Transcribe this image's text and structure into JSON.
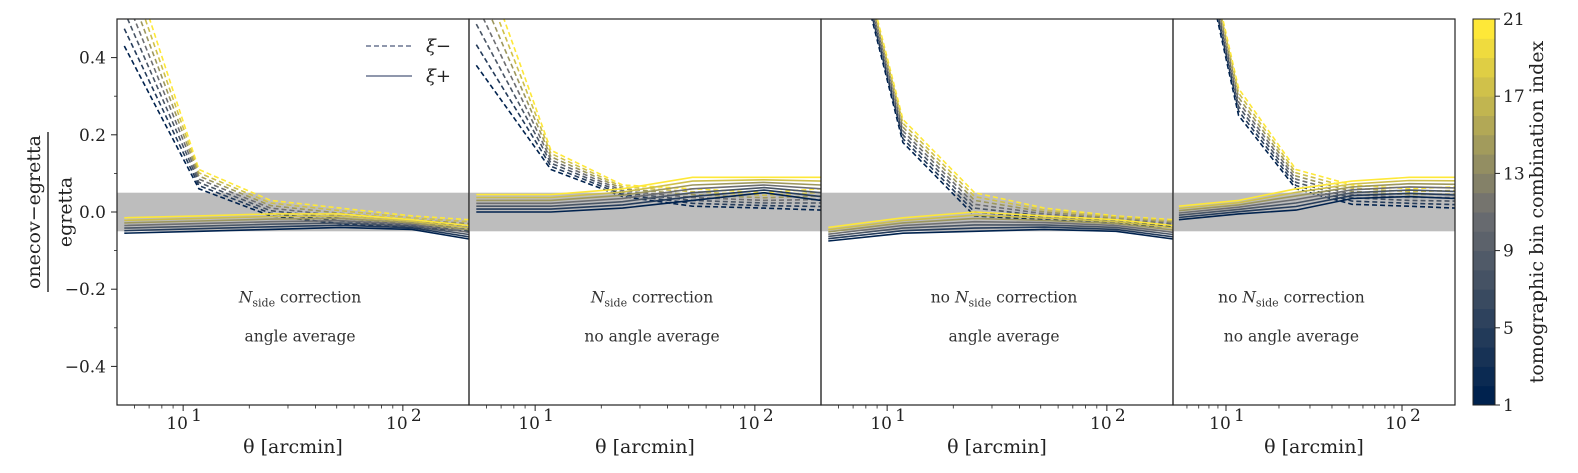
{
  "chart_data": {
    "type": "line",
    "ylabel_numerator": "onecov−egretta",
    "ylabel_denominator": "egretta",
    "xlabel": "θ [arcmin]",
    "xscale": "log",
    "xlim": [
      5,
      200
    ],
    "ylim": [
      -0.5,
      0.5
    ],
    "yticks": [
      0.4,
      0.2,
      0.0,
      -0.2,
      -0.4
    ],
    "ytick_labels": [
      "0.4",
      "0.2",
      "0.0",
      "−0.2",
      "−0.4"
    ],
    "xticks": [
      10,
      100
    ],
    "xtick_base": "10",
    "xtick_exponents": [
      "1",
      "2"
    ],
    "band": [
      -0.05,
      0.05
    ],
    "x": [
      5.4,
      11.8,
      25.0,
      52.0,
      110.0,
      200.0
    ],
    "legend": [
      {
        "label": "ξ−",
        "style": "dashed"
      },
      {
        "label": "ξ+",
        "style": "solid"
      }
    ],
    "colorbar": {
      "label": "tomographic bin combination index",
      "ticks": [
        "1",
        "5",
        "9",
        "13",
        "17",
        "21"
      ],
      "range": [
        1,
        21
      ],
      "colors": [
        "#00224e",
        "#fee838"
      ]
    },
    "panels": [
      {
        "annot_line1_prefix": "",
        "annot_line1_sub": "side",
        "annot_line1_suffix": " correction",
        "annot_line2": "angle average",
        "xi_minus": {
          "low": [
            0.43,
            0.06,
            -0.01,
            -0.03,
            -0.04,
            -0.05
          ],
          "high": [
            0.7,
            0.11,
            0.03,
            0.01,
            -0.01,
            -0.02
          ]
        },
        "xi_plus": {
          "low": [
            -0.055,
            -0.05,
            -0.045,
            -0.04,
            -0.045,
            -0.07
          ],
          "high": [
            -0.015,
            -0.01,
            -0.005,
            -0.005,
            -0.02,
            -0.035
          ]
        }
      },
      {
        "annot_line1_prefix": "",
        "annot_line1_sub": "side",
        "annot_line1_suffix": " correction",
        "annot_line2": "no angle average",
        "xi_minus": {
          "low": [
            0.38,
            0.11,
            0.04,
            0.015,
            0.01,
            0.005
          ],
          "high": [
            0.7,
            0.16,
            0.07,
            0.06,
            0.05,
            0.06
          ]
        },
        "xi_plus": {
          "low": [
            0.0,
            0.0,
            0.01,
            0.03,
            0.05,
            0.03
          ],
          "high": [
            0.045,
            0.045,
            0.06,
            0.09,
            0.09,
            0.09
          ]
        }
      },
      {
        "annot_line1_prefix": "no ",
        "annot_line1_sub": "side",
        "annot_line1_suffix": " correction",
        "annot_line2": "angle average",
        "xi_minus": {
          "low": [
            0.95,
            0.18,
            -0.01,
            -0.02,
            -0.03,
            -0.04
          ],
          "high": [
            1.0,
            0.24,
            0.05,
            0.01,
            -0.01,
            -0.02
          ]
        },
        "xi_plus": {
          "low": [
            -0.075,
            -0.055,
            -0.05,
            -0.045,
            -0.05,
            -0.07
          ],
          "high": [
            -0.04,
            -0.015,
            0.0,
            -0.01,
            -0.02,
            -0.035
          ]
        }
      },
      {
        "annot_line1_prefix": "no ",
        "annot_line1_sub": "side",
        "annot_line1_suffix": " correction",
        "annot_line2": "no angle average",
        "xi_minus": {
          "low": [
            0.95,
            0.25,
            0.06,
            0.02,
            0.015,
            0.01
          ],
          "high": [
            1.0,
            0.32,
            0.11,
            0.07,
            0.06,
            0.065
          ]
        },
        "xi_plus": {
          "low": [
            -0.02,
            -0.005,
            0.005,
            0.035,
            0.04,
            0.035
          ],
          "high": [
            0.015,
            0.03,
            0.06,
            0.08,
            0.09,
            0.09
          ]
        }
      }
    ]
  }
}
